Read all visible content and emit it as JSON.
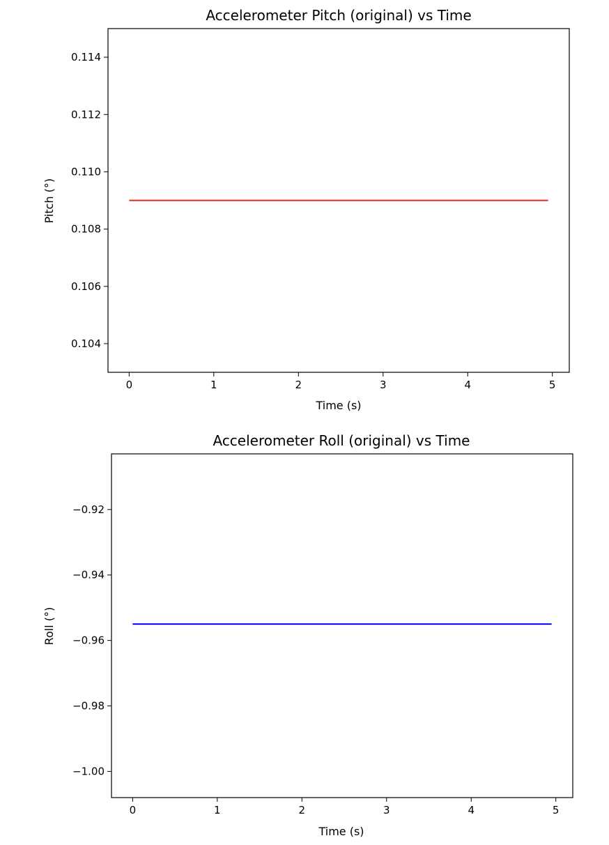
{
  "chart_data": [
    {
      "type": "line",
      "title": "Accelerometer Pitch (original) vs Time",
      "xlabel": "Time (s)",
      "ylabel": "Pitch (°)",
      "xlim": [
        -0.25,
        5.2
      ],
      "ylim": [
        0.103,
        0.115
      ],
      "xticks": [
        0,
        1,
        2,
        3,
        4,
        5
      ],
      "xtick_labels": [
        "0",
        "1",
        "2",
        "3",
        "4",
        "5"
      ],
      "yticks": [
        0.104,
        0.106,
        0.108,
        0.11,
        0.112,
        0.114
      ],
      "ytick_labels": [
        "0.104",
        "0.106",
        "0.108",
        "0.110",
        "0.112",
        "0.114"
      ],
      "grid": false,
      "series": [
        {
          "color": "#d62a1f",
          "x": [
            0,
            4.95
          ],
          "y": [
            0.109,
            0.109
          ]
        }
      ]
    },
    {
      "type": "line",
      "title": "Accelerometer Roll (original) vs Time",
      "xlabel": "Time (s)",
      "ylabel": "Roll (°)",
      "xlim": [
        -0.25,
        5.2
      ],
      "ylim": [
        -1.008,
        -0.903
      ],
      "xticks": [
        0,
        1,
        2,
        3,
        4,
        5
      ],
      "xtick_labels": [
        "0",
        "1",
        "2",
        "3",
        "4",
        "5"
      ],
      "yticks": [
        -1.0,
        -0.98,
        -0.96,
        -0.94,
        -0.92
      ],
      "ytick_labels": [
        "−1.00",
        "−0.98",
        "−0.96",
        "−0.94",
        "−0.92"
      ],
      "grid": false,
      "series": [
        {
          "color": "#0000ff",
          "x": [
            0,
            4.95
          ],
          "y": [
            -0.955,
            -0.955
          ]
        }
      ]
    }
  ]
}
